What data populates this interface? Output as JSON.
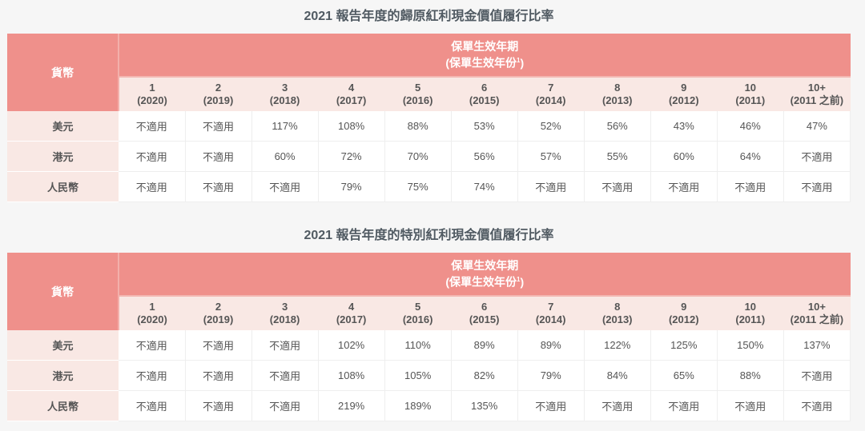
{
  "currency_header": "貨幣",
  "period_header": "保單生效年期",
  "period_subheader": "(保單生效年份",
  "period_sup": "1",
  "period_close": ")",
  "columns": [
    {
      "year": "1",
      "label": "(2020)"
    },
    {
      "year": "2",
      "label": "(2019)"
    },
    {
      "year": "3",
      "label": "(2018)"
    },
    {
      "year": "4",
      "label": "(2017)"
    },
    {
      "year": "5",
      "label": "(2016)"
    },
    {
      "year": "6",
      "label": "(2015)"
    },
    {
      "year": "7",
      "label": "(2014)"
    },
    {
      "year": "8",
      "label": "(2013)"
    },
    {
      "year": "9",
      "label": "(2012)"
    },
    {
      "year": "10",
      "label": "(2011)"
    },
    {
      "year": "10+",
      "label": "(2011 之前)"
    }
  ],
  "tables": [
    {
      "title": "2021 報告年度的歸原紅利現金價值履行比率",
      "rows": [
        {
          "currency": "美元",
          "values": [
            "不適用",
            "不適用",
            "117%",
            "108%",
            "88%",
            "53%",
            "52%",
            "56%",
            "43%",
            "46%",
            "47%"
          ]
        },
        {
          "currency": "港元",
          "values": [
            "不適用",
            "不適用",
            "60%",
            "72%",
            "70%",
            "56%",
            "57%",
            "55%",
            "60%",
            "64%",
            "不適用"
          ]
        },
        {
          "currency": "人民幣",
          "values": [
            "不適用",
            "不適用",
            "不適用",
            "79%",
            "75%",
            "74%",
            "不適用",
            "不適用",
            "不適用",
            "不適用",
            "不適用"
          ]
        }
      ]
    },
    {
      "title": "2021 報告年度的特別紅利現金價值履行比率",
      "rows": [
        {
          "currency": "美元",
          "values": [
            "不適用",
            "不適用",
            "不適用",
            "102%",
            "110%",
            "89%",
            "89%",
            "122%",
            "125%",
            "150%",
            "137%"
          ]
        },
        {
          "currency": "港元",
          "values": [
            "不適用",
            "不適用",
            "不適用",
            "108%",
            "105%",
            "82%",
            "79%",
            "84%",
            "65%",
            "88%",
            "不適用"
          ]
        },
        {
          "currency": "人民幣",
          "values": [
            "不適用",
            "不適用",
            "不適用",
            "219%",
            "189%",
            "135%",
            "不適用",
            "不適用",
            "不適用",
            "不適用",
            "不適用"
          ]
        }
      ]
    }
  ]
}
